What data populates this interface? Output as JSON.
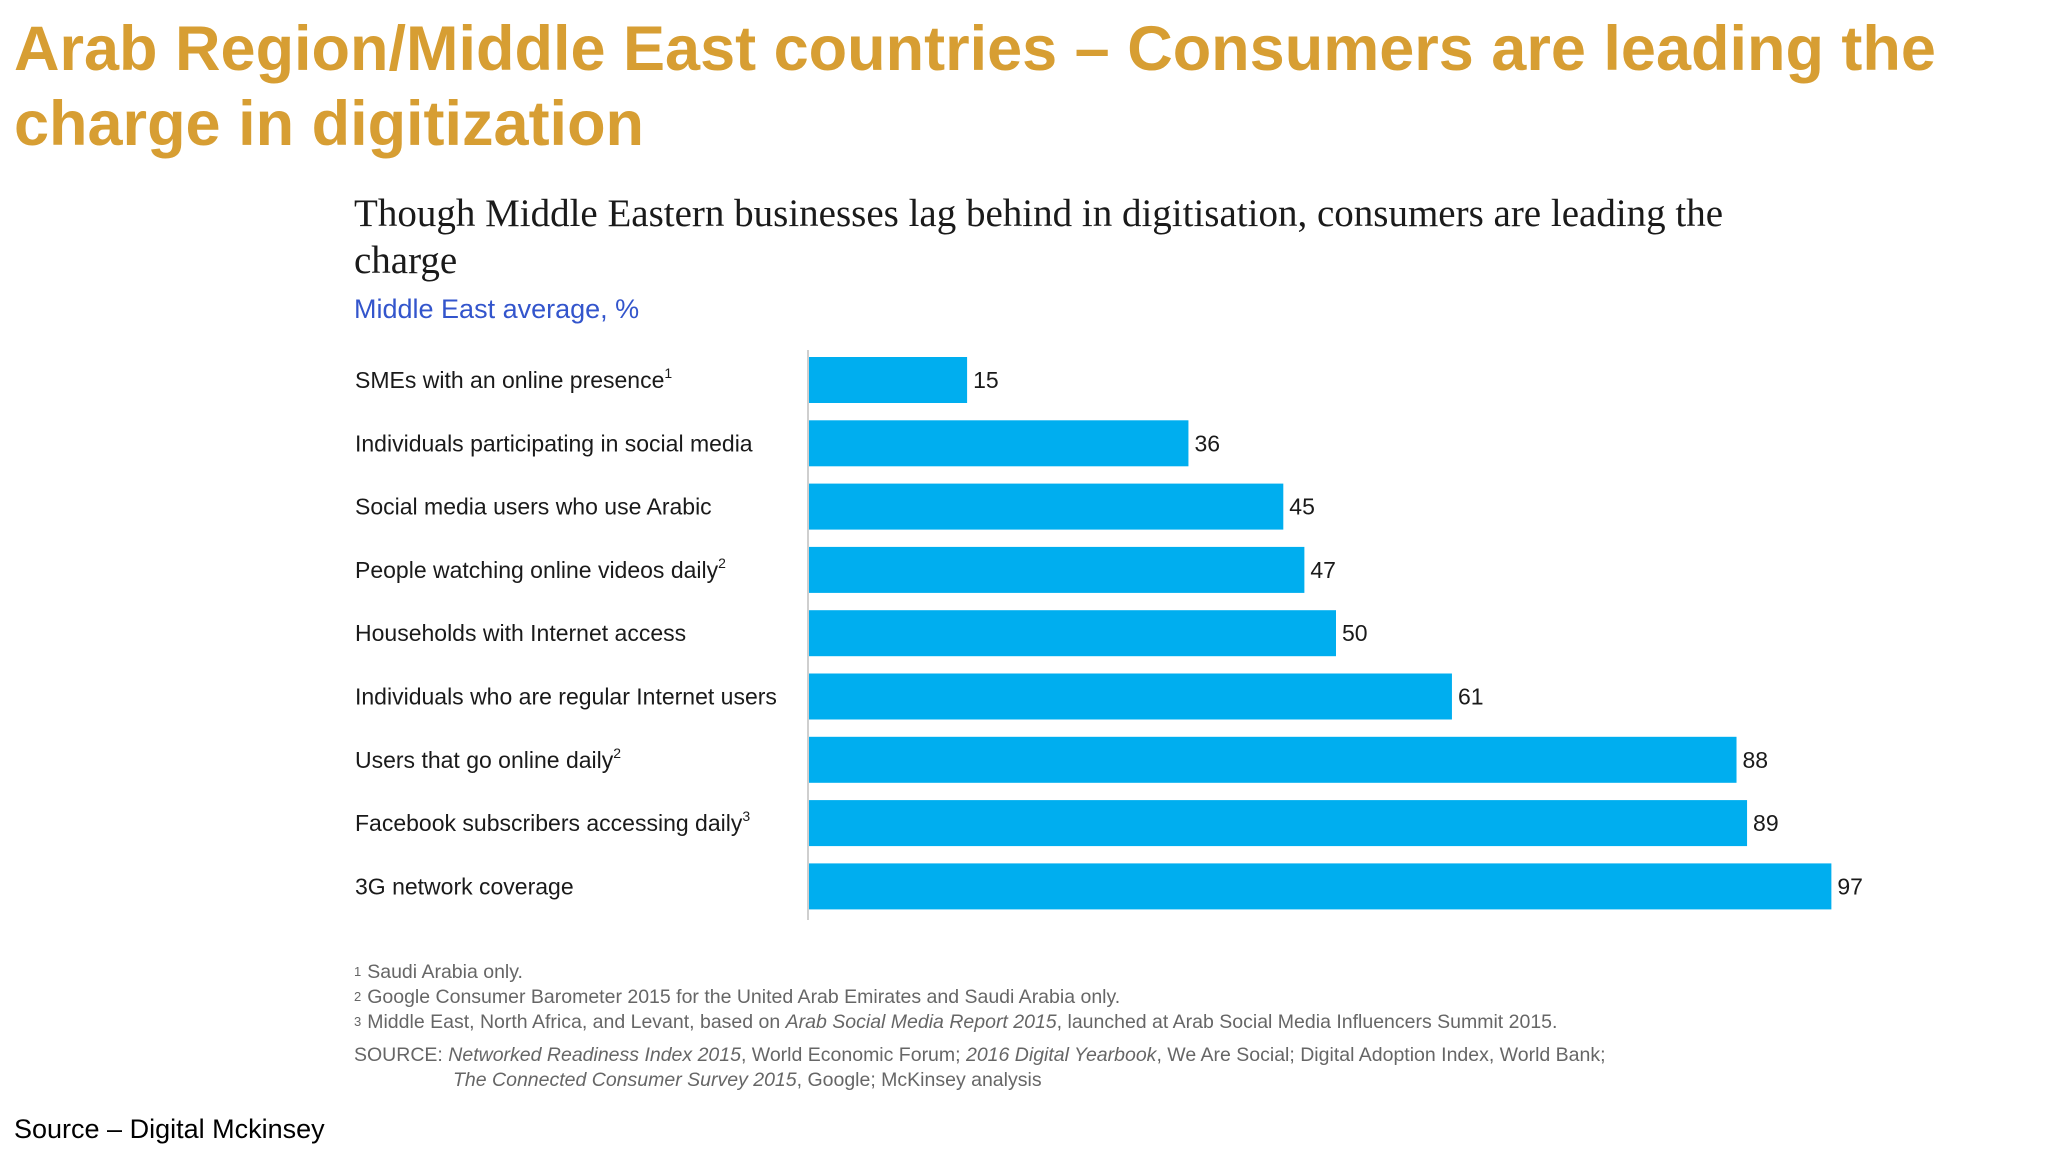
{
  "slide": {
    "title": "Arab Region/Middle East countries – Consumers are leading the charge in digitization",
    "footer_source": "Source – Digital Mckinsey"
  },
  "colors": {
    "title": "#D79E33",
    "bar": "#00AEEF",
    "subtitle": "#3355CC",
    "footnote_text": "#666666"
  },
  "chart_data": {
    "type": "bar",
    "orientation": "horizontal",
    "title": "Though Middle Eastern businesses lag behind in digitisation, consumers are leading the charge",
    "subtitle": "Middle East average, %",
    "categories": [
      {
        "label": "SMEs with an online presence",
        "sup": "1"
      },
      {
        "label": "Individuals participating in social media",
        "sup": ""
      },
      {
        "label": "Social media users who use Arabic",
        "sup": ""
      },
      {
        "label": "People watching online videos daily",
        "sup": "2"
      },
      {
        "label": "Households with Internet access",
        "sup": ""
      },
      {
        "label": "Individuals who are regular Internet users",
        "sup": ""
      },
      {
        "label": "Users that go online daily",
        "sup": "2"
      },
      {
        "label": "Facebook subscribers accessing daily",
        "sup": "3"
      },
      {
        "label": "3G network coverage",
        "sup": ""
      }
    ],
    "values": [
      15,
      36,
      45,
      47,
      50,
      61,
      88,
      89,
      97
    ],
    "xlim": [
      0,
      100
    ],
    "data_labels": true,
    "grid": false
  },
  "footnotes": [
    {
      "num": "1",
      "text": "Saudi Arabia only."
    },
    {
      "num": "2",
      "text": "Google Consumer Barometer 2015 for the United Arab Emirates and Saudi Arabia only."
    },
    {
      "num": "3",
      "pre": "Middle East, North Africa, and Levant, based on ",
      "italic": "Arab Social Media Report 2015",
      "post": ", launched at Arab Social Media Influencers Summit 2015."
    }
  ],
  "source": {
    "label": "SOURCE: ",
    "line1": [
      {
        "text": "Networked Readiness Index 2015",
        "italic": true
      },
      {
        "text": ", World Economic Forum; ",
        "italic": false
      },
      {
        "text": "2016 Digital Yearbook",
        "italic": true
      },
      {
        "text": ", We Are Social; Digital Adoption Index, World Bank;",
        "italic": false
      }
    ],
    "line2": [
      {
        "text": "The Connected Consumer Survey 2015",
        "italic": true
      },
      {
        "text": ", Google; McKinsey analysis",
        "italic": false
      }
    ]
  }
}
